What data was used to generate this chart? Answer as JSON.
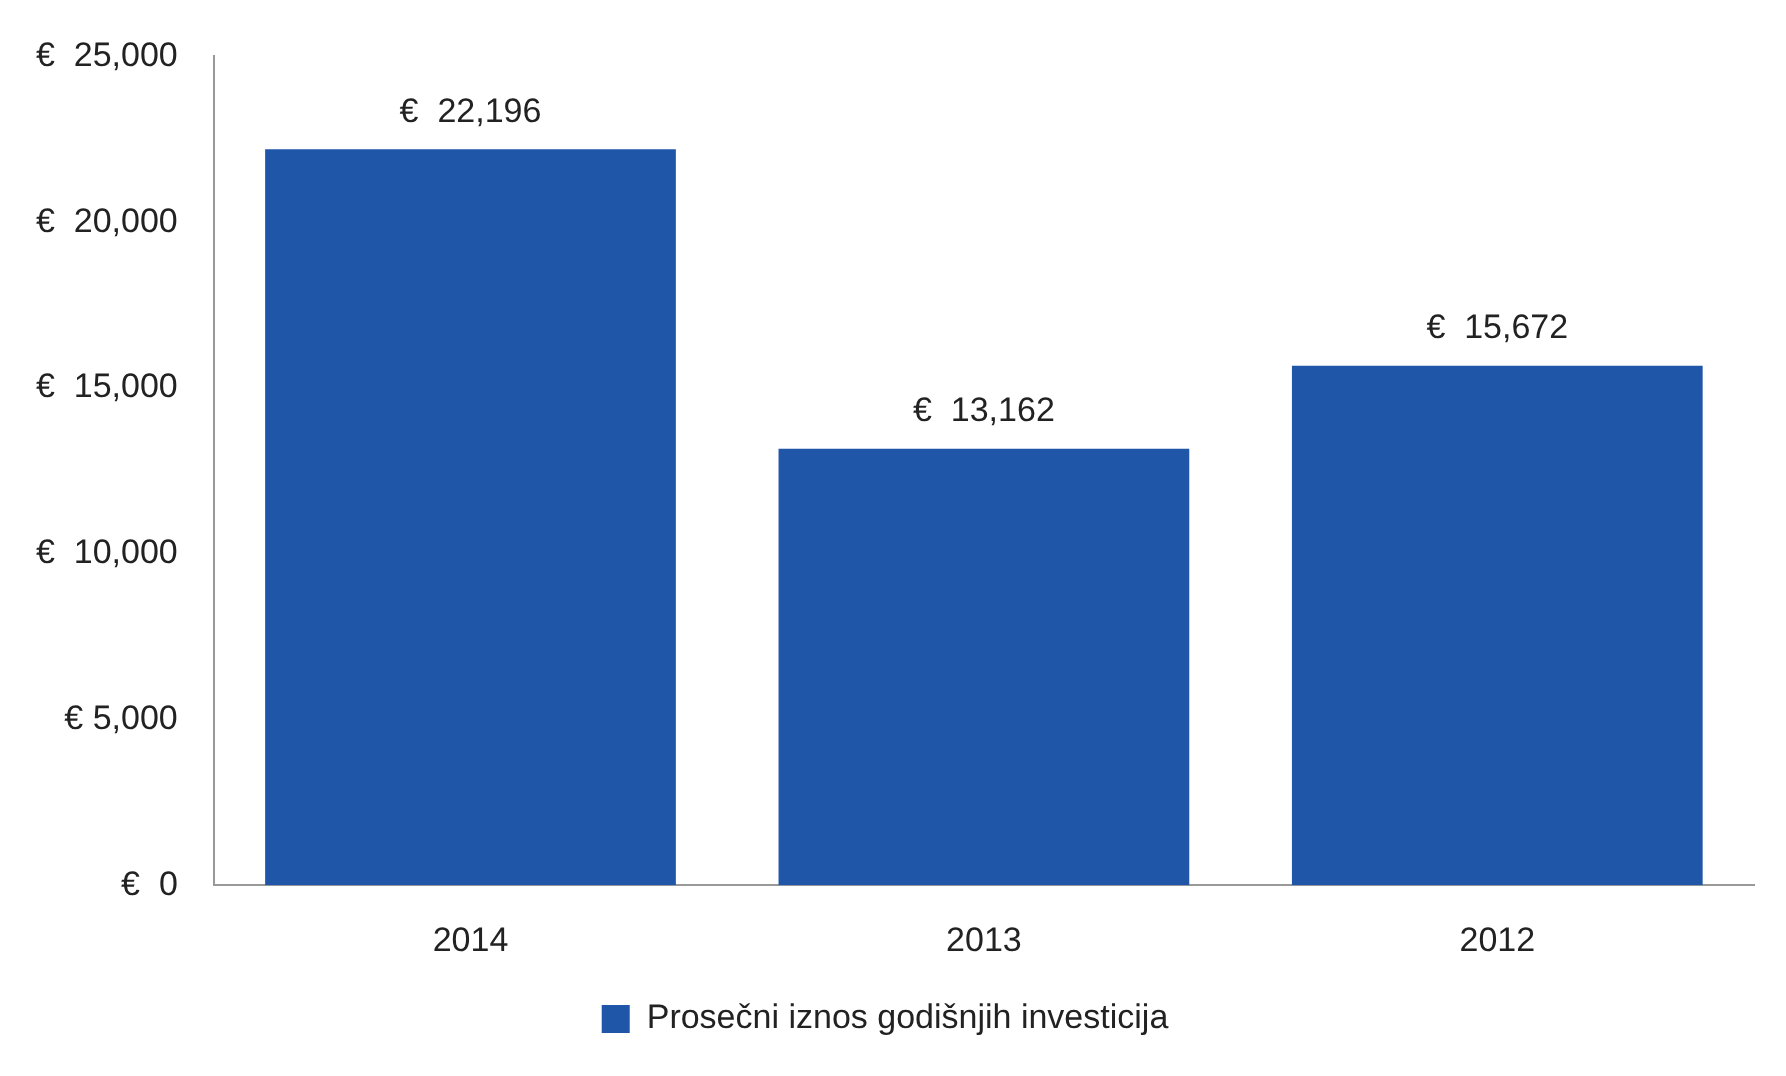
{
  "chart_data": {
    "type": "bar",
    "categories": [
      "2014",
      "2013",
      "2012"
    ],
    "series": [
      {
        "name": "Prosečni iznos godišnjih investicija",
        "color": "#1f56a8",
        "values": [
          22196,
          13162,
          15672
        ],
        "value_labels": [
          "€  22,196",
          "€  13,162",
          "€  15,672"
        ]
      }
    ],
    "ylim": [
      0,
      25000
    ],
    "yticks": [
      {
        "value": 0,
        "label": "€  0"
      },
      {
        "value": 5000,
        "label": "€ 5,000"
      },
      {
        "value": 10000,
        "label": "€  10,000"
      },
      {
        "value": 15000,
        "label": "€  15,000"
      },
      {
        "value": 20000,
        "label": "€  20,000"
      },
      {
        "value": 25000,
        "label": "€  25,000"
      }
    ],
    "grid": false,
    "legend": "bottom"
  }
}
